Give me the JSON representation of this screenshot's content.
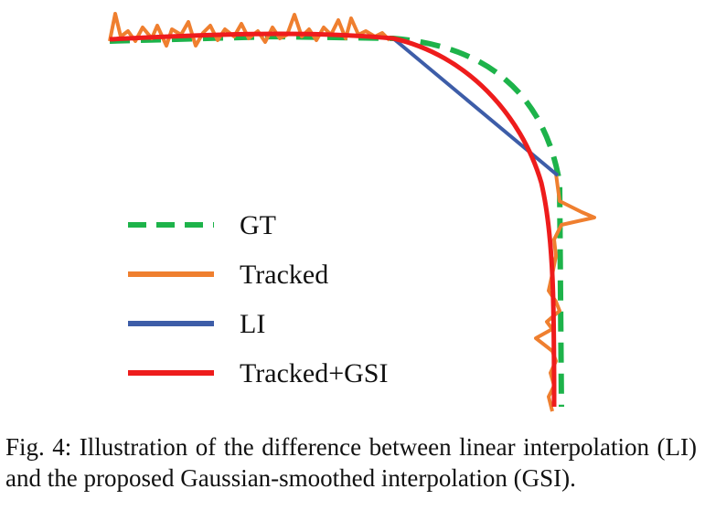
{
  "legend": {
    "gt": "GT",
    "tracked": "Tracked",
    "li": "LI",
    "gsi": "Tracked+GSI"
  },
  "colors": {
    "gt": "#1db34a",
    "tracked": "#ef7f2f",
    "li": "#3d5da8",
    "gsi": "#ee1c1c"
  },
  "caption": {
    "text": "Fig. 4: Illustration of the difference between linear interpolation (LI) and the proposed Gaussian-smoothed interpolation (GSI)."
  }
}
